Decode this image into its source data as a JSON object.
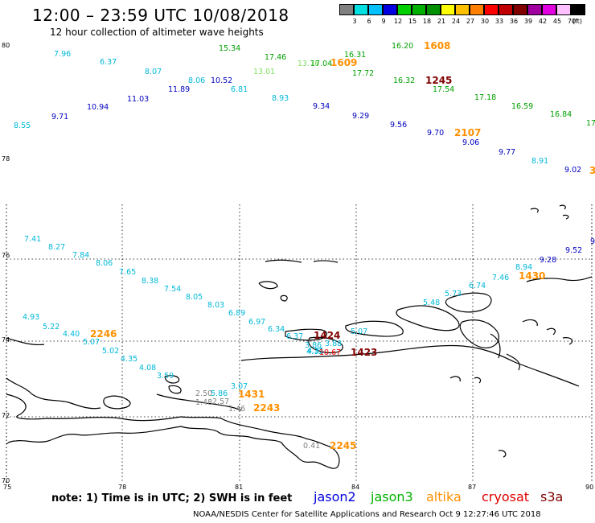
{
  "title": "12:00 – 23:59 UTC 10/08/2018",
  "subtitle": "12 hour collection of altimeter wave heights",
  "colorbar": {
    "unit": "(ft)",
    "items": [
      {
        "label": "3",
        "color": "#808080"
      },
      {
        "label": "6",
        "color": "#00e0e0"
      },
      {
        "label": "9",
        "color": "#00c0ff"
      },
      {
        "label": "12",
        "color": "#0000e0"
      },
      {
        "label": "15",
        "color": "#00d000"
      },
      {
        "label": "18",
        "color": "#00b000"
      },
      {
        "label": "21",
        "color": "#009000"
      },
      {
        "label": "24",
        "color": "#ffff00"
      },
      {
        "label": "27",
        "color": "#ffc000"
      },
      {
        "label": "30",
        "color": "#ff8000"
      },
      {
        "label": "33",
        "color": "#ff0000"
      },
      {
        "label": "36",
        "color": "#c00000"
      },
      {
        "label": "39",
        "color": "#800000"
      },
      {
        "label": "42",
        "color": "#a000a0"
      },
      {
        "label": "45",
        "color": "#e000e0"
      },
      {
        "label": "70",
        "color": "#ffc0ff"
      },
      {
        "label": "",
        "color": "#000000"
      }
    ]
  },
  "lat_labels": [
    "80",
    "78",
    "76",
    "74",
    "72",
    "70"
  ],
  "lon_labels": [
    "75",
    "78",
    "81",
    "84",
    "87",
    "90"
  ],
  "note": "note:  1) Time is in UTC;  2) SWH is in feet",
  "satellites": [
    {
      "name": "jason2",
      "color": "#0000e0"
    },
    {
      "name": "jason3",
      "color": "#00b000"
    },
    {
      "name": "altika",
      "color": "#ff9000"
    },
    {
      "name": "cryosat",
      "color": "#e00000"
    },
    {
      "name": "s3a",
      "color": "#800000"
    }
  ],
  "footer": "NOAA/NESDIS Center for Satellite Applications and Research   Oct  9 12:27:46 UTC 2018",
  "wave_values": [
    {
      "v": "7.96",
      "c": "#00b8d8"
    },
    {
      "v": "6.37",
      "c": "#00b8d8"
    },
    {
      "v": "8.07",
      "c": "#00b8d8"
    },
    {
      "v": "8.06",
      "c": "#00b8d8"
    },
    {
      "v": "10.52",
      "c": "#0000c0"
    },
    {
      "v": "6.81",
      "c": "#00b8d8"
    },
    {
      "v": "8.93",
      "c": "#00b8d8"
    },
    {
      "v": "9.34",
      "c": "#0000c0"
    },
    {
      "v": "9.29",
      "c": "#0000c0"
    },
    {
      "v": "9.56",
      "c": "#0000c0"
    },
    {
      "v": "9.70",
      "c": "#0000c0"
    },
    {
      "v": "9.06",
      "c": "#0000c0"
    },
    {
      "v": "9.77",
      "c": "#0000c0"
    },
    {
      "v": "8.91",
      "c": "#00b8d8"
    },
    {
      "v": "9.02",
      "c": "#0000c0"
    },
    {
      "v": "8.55",
      "c": "#00b8d8"
    },
    {
      "v": "9.71",
      "c": "#0000c0"
    },
    {
      "v": "10.94",
      "c": "#0000c0"
    },
    {
      "v": "11.03",
      "c": "#0000c0"
    },
    {
      "v": "11.89",
      "c": "#0000c0"
    },
    {
      "v": "15.34",
      "c": "#00a000"
    },
    {
      "v": "17.46",
      "c": "#00a000"
    },
    {
      "v": "13.01",
      "c": "#80e060"
    },
    {
      "v": "13.76",
      "c": "#80e060"
    },
    {
      "v": "17.04",
      "c": "#00a000"
    },
    {
      "v": "16.31",
      "c": "#00a000"
    },
    {
      "v": "17.72",
      "c": "#00a000"
    },
    {
      "v": "16.20",
      "c": "#00a000"
    },
    {
      "v": "16.32",
      "c": "#00a000"
    },
    {
      "v": "17.54",
      "c": "#00a000"
    },
    {
      "v": "17.18",
      "c": "#00a000"
    },
    {
      "v": "16.59",
      "c": "#00a000"
    },
    {
      "v": "16.84",
      "c": "#00a000"
    },
    {
      "v": "17",
      "c": "#00a000"
    },
    {
      "v": "7.41",
      "c": "#00b8d8"
    },
    {
      "v": "8.27",
      "c": "#00b8d8"
    },
    {
      "v": "7.84",
      "c": "#00b8d8"
    },
    {
      "v": "8.06",
      "c": "#00b8d8"
    },
    {
      "v": "7.65",
      "c": "#00b8d8"
    },
    {
      "v": "8.38",
      "c": "#00b8d8"
    },
    {
      "v": "7.54",
      "c": "#00b8d8"
    },
    {
      "v": "8.05",
      "c": "#00b8d8"
    },
    {
      "v": "8.03",
      "c": "#00b8d8"
    },
    {
      "v": "6.89",
      "c": "#00b8d8"
    },
    {
      "v": "6.97",
      "c": "#00b8d8"
    },
    {
      "v": "6.34",
      "c": "#00b8d8"
    },
    {
      "v": "6.37",
      "c": "#00b8d8"
    },
    {
      "v": "5.07",
      "c": "#00b8d8"
    },
    {
      "v": "4.93",
      "c": "#00b8d8"
    },
    {
      "v": "5.22",
      "c": "#00b8d8"
    },
    {
      "v": "4.40",
      "c": "#00b8d8"
    },
    {
      "v": "5.07",
      "c": "#00b8d8"
    },
    {
      "v": "5.02",
      "c": "#00b8d8"
    },
    {
      "v": "4.35",
      "c": "#00b8d8"
    },
    {
      "v": "4.08",
      "c": "#00b8d8"
    },
    {
      "v": "3.59",
      "c": "#00b8d8"
    },
    {
      "v": "3.07",
      "c": "#00b8d8"
    },
    {
      "v": "3.86",
      "c": "#00b8d8"
    },
    {
      "v": "4.32",
      "c": "#00b8d8"
    },
    {
      "v": "3.88",
      "c": "#00b8d8"
    },
    {
      "v": "4.31",
      "c": "#00b8d8"
    },
    {
      "v": "5.48",
      "c": "#00b8d8"
    },
    {
      "v": "5.73",
      "c": "#00b8d8"
    },
    {
      "v": "6.74",
      "c": "#00b8d8"
    },
    {
      "v": "7.46",
      "c": "#00b8d8"
    },
    {
      "v": "8.94",
      "c": "#00b8d8"
    },
    {
      "v": "9.28",
      "c": "#0000c0"
    },
    {
      "v": "9.52",
      "c": "#0000c0"
    },
    {
      "v": "9",
      "c": "#0000c0"
    },
    {
      "v": "2.50",
      "c": "#808080"
    },
    {
      "v": "5.86",
      "c": "#00b8d8"
    },
    {
      "v": "1.48",
      "c": "#808080"
    },
    {
      "v": "2.57",
      "c": "#808080"
    },
    {
      "v": "1.46",
      "c": "#808080"
    },
    {
      "v": "0.41",
      "c": "#808080"
    },
    {
      "v": "10.67",
      "c": "#ff0000"
    }
  ],
  "time_labels": [
    {
      "t": "1608",
      "c": "#ff9000"
    },
    {
      "t": "1609",
      "c": "#ff9000"
    },
    {
      "t": "1245",
      "c": "#800000"
    },
    {
      "t": "2107",
      "c": "#ff9000"
    },
    {
      "t": "1430",
      "c": "#ff9000"
    },
    {
      "t": "2246",
      "c": "#ff9000"
    },
    {
      "t": "1424",
      "c": "#800000"
    },
    {
      "t": "1423",
      "c": "#800000"
    },
    {
      "t": "1431",
      "c": "#ff9000"
    },
    {
      "t": "2243",
      "c": "#ff9000"
    },
    {
      "t": "2245",
      "c": "#ff9000"
    },
    {
      "t": "3",
      "c": "#ff9000"
    }
  ]
}
